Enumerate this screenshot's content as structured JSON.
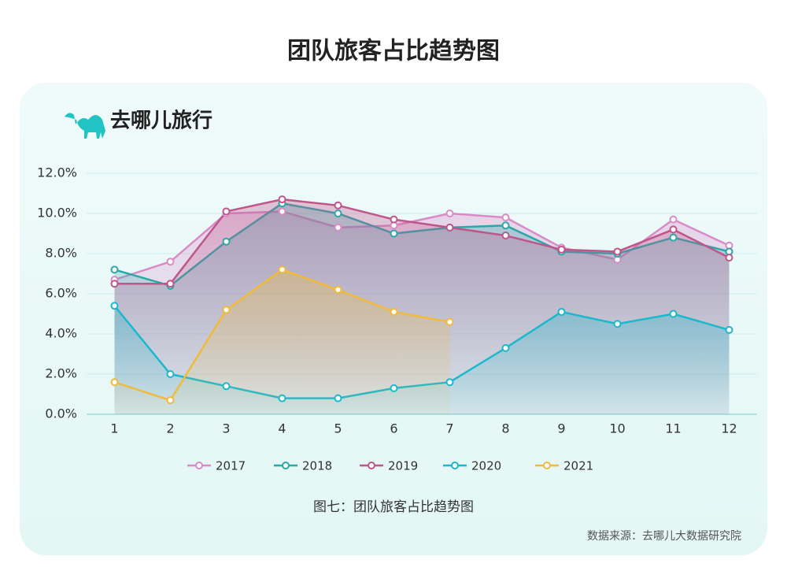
{
  "title": "团队旅客占比趋势图",
  "brand": "去哪儿旅行",
  "caption": "图七：团队旅客占比趋势图",
  "source": "数据来源：去哪儿大数据研究院",
  "chart_data": {
    "type": "line",
    "categories": [
      "1",
      "2",
      "3",
      "4",
      "5",
      "6",
      "7",
      "8",
      "9",
      "10",
      "11",
      "12"
    ],
    "series": [
      {
        "name": "2017",
        "color": "#d98bc8",
        "values": [
          6.7,
          7.6,
          10.0,
          10.1,
          9.3,
          9.4,
          10.0,
          9.8,
          8.3,
          7.7,
          9.7,
          8.4
        ]
      },
      {
        "name": "2018",
        "color": "#2aa8a8",
        "values": [
          7.2,
          6.4,
          8.6,
          10.5,
          10.0,
          9.0,
          9.3,
          9.4,
          8.1,
          8.0,
          8.8,
          8.1
        ]
      },
      {
        "name": "2019",
        "color": "#c0558a",
        "values": [
          6.5,
          6.5,
          10.1,
          10.7,
          10.4,
          9.7,
          9.3,
          8.9,
          8.2,
          8.1,
          9.2,
          7.8
        ]
      },
      {
        "name": "2020",
        "color": "#1bb8cc",
        "values": [
          5.4,
          2.0,
          1.4,
          0.8,
          0.8,
          1.3,
          1.6,
          3.3,
          5.1,
          4.5,
          5.0,
          4.2
        ]
      },
      {
        "name": "2021",
        "color": "#f0bb3a",
        "values": [
          1.6,
          0.7,
          5.2,
          7.2,
          6.2,
          5.1,
          4.6,
          null,
          null,
          null,
          null,
          null
        ]
      }
    ],
    "ylim": [
      0,
      12
    ],
    "yticks": [
      {
        "value": 0,
        "label": "0.0%"
      },
      {
        "value": 2,
        "label": "2.0%"
      },
      {
        "value": 4,
        "label": "4.0%"
      },
      {
        "value": 6,
        "label": "6.0%"
      },
      {
        "value": 8,
        "label": "8.0%"
      },
      {
        "value": 10,
        "label": "10.0%"
      },
      {
        "value": 12,
        "label": "12.0%"
      }
    ],
    "grid": true
  }
}
